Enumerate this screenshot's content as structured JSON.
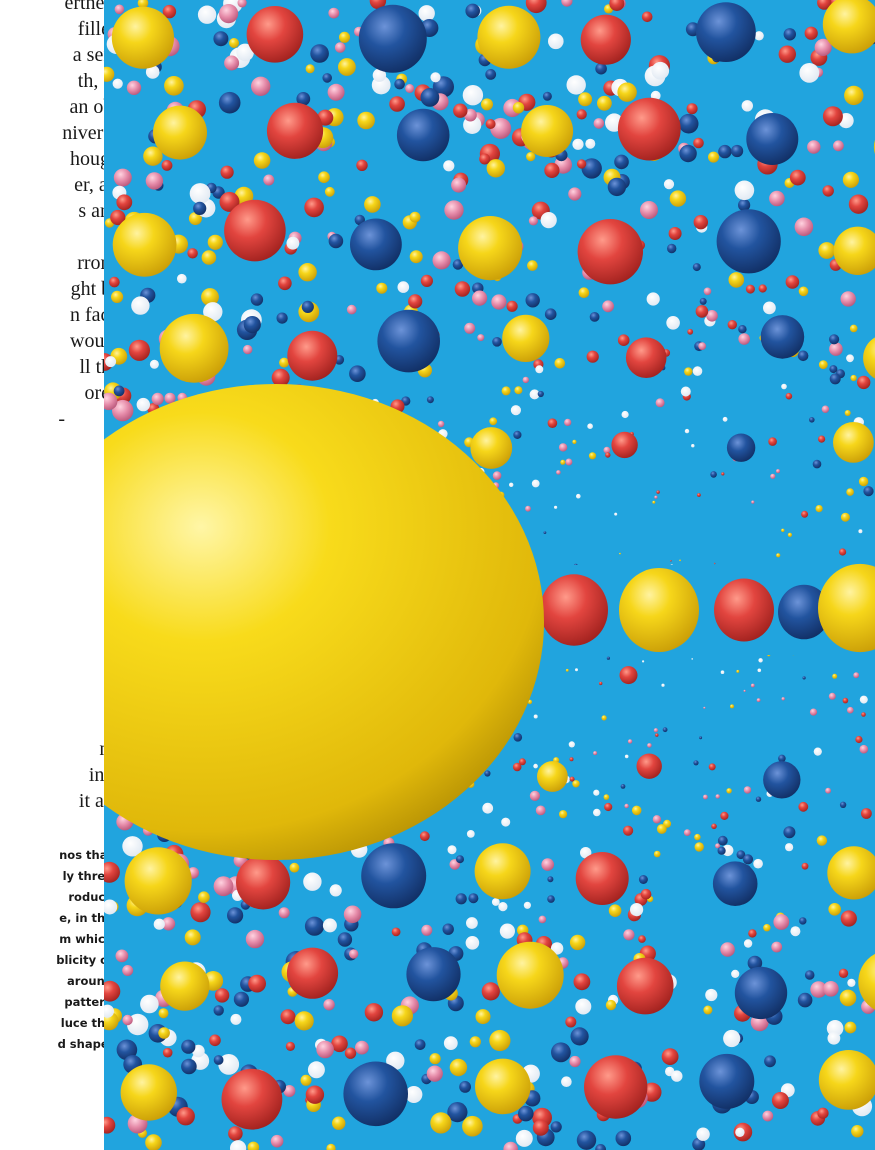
{
  "body_text": {
    "lines": [
      "ertness",
      "filled",
      "a sen-",
      "th,  of",
      "an ob-",
      "niverse",
      "hough",
      "er, al-",
      "s  and",
      "rrors,",
      "ght be",
      "n fact,",
      "would",
      "ll  the",
      "ore",
      "-",
      "n-",
      "into",
      "it all."
    ]
  },
  "caption": {
    "lines": [
      "nos that",
      "ly three",
      "roduce",
      "e, in the",
      "m which",
      "blicity of",
      "around",
      "pattern",
      "luce the",
      "d shape."
    ]
  },
  "figure": {
    "image_name": "mirrored-cosmos-illustration",
    "colors": {
      "background": "#21a4de",
      "yellow": "#f3d20e",
      "red": "#e0403c",
      "blue": "#1f4f9a",
      "pink": "#e58aa8"
    }
  }
}
